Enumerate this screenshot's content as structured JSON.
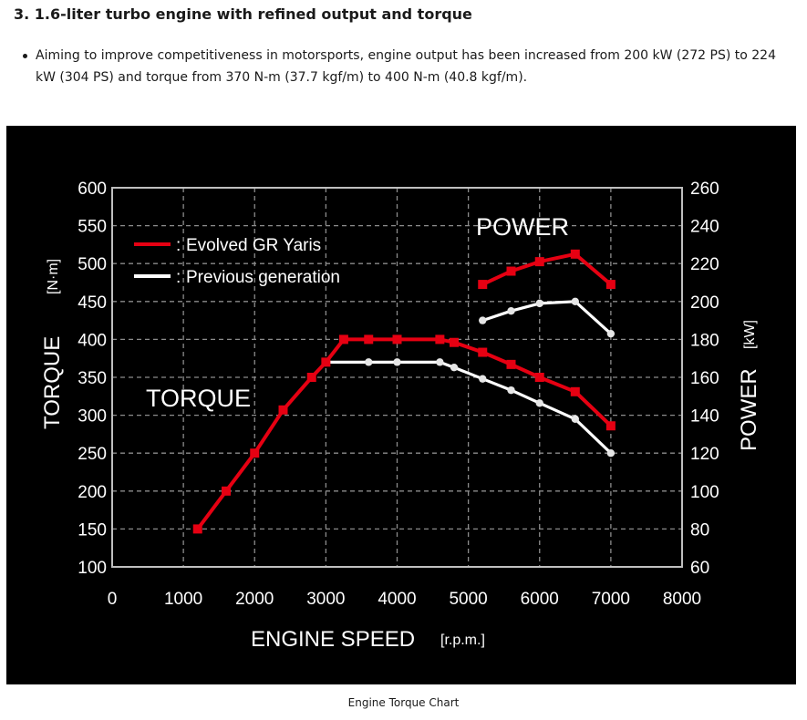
{
  "heading": "3. 1.6-liter turbo engine with refined output and torque",
  "bullets": [
    "Aiming to improve competitiveness in motorsports, engine output has been increased from 200 kW (272 PS) to 224 kW (304 PS) and torque from 370 N-m (37.7 kgf/m) to 400 N-m (40.8 kgf/m)."
  ],
  "caption": "Engine Torque Chart",
  "chart_data": {
    "type": "line",
    "xlabel": "ENGINE SPEED",
    "xunit": "[r.p.m.]",
    "ylabel_left": "TORQUE",
    "yunit_left": "[N·m]",
    "ylabel_right": "POWER",
    "yunit_right": "[kW]",
    "xlim": [
      0,
      8000
    ],
    "ylim_left": [
      100,
      600
    ],
    "ylim_right": [
      60,
      260
    ],
    "x_ticks": [
      0,
      1000,
      2000,
      3000,
      4000,
      5000,
      6000,
      7000,
      8000
    ],
    "y_ticks_left": [
      100,
      150,
      200,
      250,
      300,
      350,
      400,
      450,
      500,
      550,
      600
    ],
    "y_ticks_right": [
      60,
      80,
      100,
      120,
      140,
      160,
      180,
      200,
      220,
      240,
      260
    ],
    "grid": true,
    "legend_placement": "top-left",
    "annotations": {
      "torque": "TORQUE",
      "power": "POWER"
    },
    "legend": [
      {
        "label": "Evolved GR Yaris",
        "color": "#e60012"
      },
      {
        "label": "Previous generation",
        "color": "#ffffff"
      }
    ],
    "series": [
      {
        "name": "Evolved GR Yaris",
        "group": "torque",
        "axis": "left",
        "color": "#e60012",
        "marker": "square",
        "x": [
          1200,
          1600,
          2000,
          2400,
          2800,
          3000,
          3250,
          3600,
          4000,
          4600,
          4800,
          5200,
          5600,
          6000,
          6500,
          7000
        ],
        "y": [
          150,
          200,
          250,
          307,
          350,
          370,
          400,
          400,
          400,
          400,
          396,
          383,
          367,
          350,
          331,
          286
        ]
      },
      {
        "name": "Previous generation",
        "group": "torque",
        "axis": "left",
        "color": "#ffffff",
        "marker": "circle",
        "x": [
          3000,
          3600,
          4000,
          4600,
          4800,
          5200,
          5600,
          6000,
          6500,
          7000
        ],
        "y": [
          370,
          370,
          370,
          370,
          363,
          348,
          333,
          316,
          295,
          250
        ]
      },
      {
        "name": "Evolved GR Yaris",
        "group": "power",
        "axis": "right",
        "color": "#e60012",
        "marker": "square",
        "x": [
          5200,
          5600,
          6000,
          6500,
          7000
        ],
        "y": [
          209,
          216,
          221,
          225,
          209
        ]
      },
      {
        "name": "Previous generation",
        "group": "power",
        "axis": "right",
        "color": "#ffffff",
        "marker": "circle",
        "x": [
          5200,
          5600,
          6000,
          6500,
          7000
        ],
        "y": [
          190,
          195,
          199,
          200,
          183
        ]
      }
    ]
  }
}
